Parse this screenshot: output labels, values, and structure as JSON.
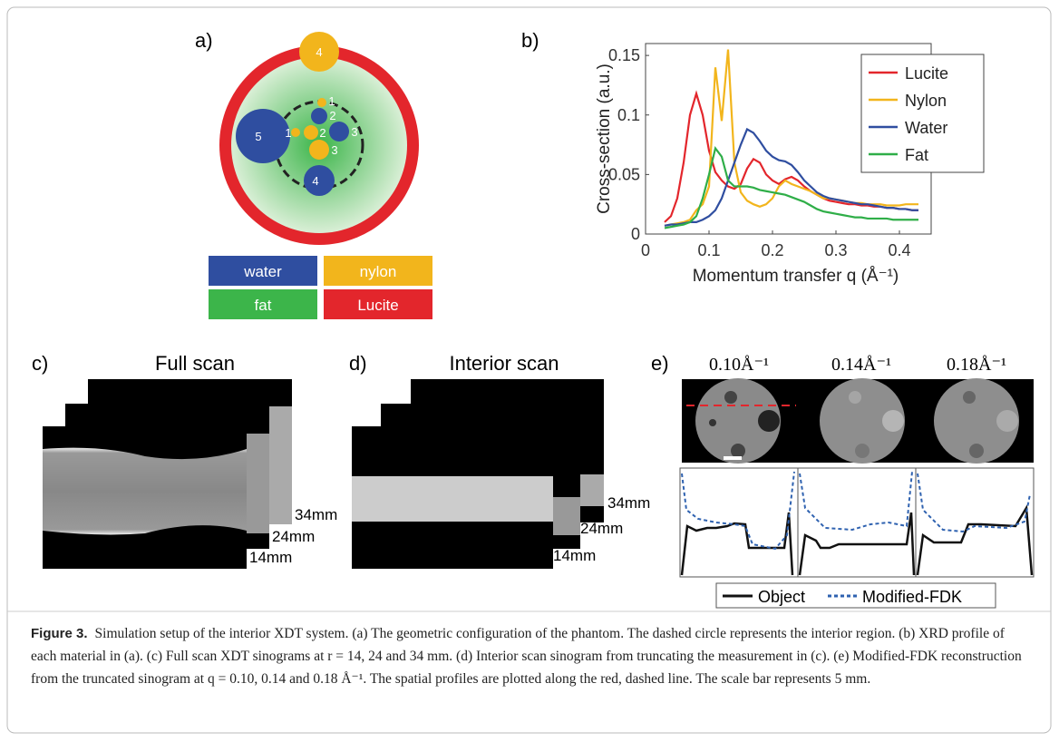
{
  "figure": {
    "panel_a": {
      "label": "a)",
      "markers": [
        "4",
        "1",
        "2",
        "5",
        "1",
        "2",
        "3",
        "3",
        "4"
      ],
      "legend": [
        "water",
        "nylon",
        "fat",
        "Lucite"
      ]
    },
    "panel_c": {
      "label": "c)",
      "title": "Full scan",
      "depths": [
        "14mm",
        "24mm",
        "34mm"
      ]
    },
    "panel_d": {
      "label": "d)",
      "title": "Interior scan",
      "depths": [
        "14mm",
        "24mm",
        "34mm"
      ]
    },
    "panel_e": {
      "label": "e)",
      "q_labels": [
        "0.10Å⁻¹",
        "0.14Å⁻¹",
        "0.18Å⁻¹"
      ],
      "legend": [
        "Object",
        "Modified-FDK"
      ]
    },
    "caption": {
      "label": "Figure 3.",
      "text": "Simulation setup of the interior XDT system. (a) The geometric configuration of the phantom. The dashed circle represents the interior region. (b) XRD profile of each material in (a). (c) Full scan XDT sinograms at r = 14, 24 and 34 mm. (d) Interior scan sinogram from truncating the measurement in (c). (e) Modified-FDK reconstruction from the truncated sinogram at q = 0.10, 0.14 and 0.18 Å⁻¹. The spatial profiles are plotted along the red, dashed line. The scale bar represents 5 mm."
    }
  },
  "chart_data": {
    "type": "line",
    "panel_label": "b)",
    "xlabel": "Momentum transfer q (Å⁻¹)",
    "ylabel": "Cross-section (a.u.)",
    "x": [
      0.03,
      0.04,
      0.05,
      0.06,
      0.07,
      0.08,
      0.09,
      0.1,
      0.11,
      0.12,
      0.13,
      0.14,
      0.15,
      0.16,
      0.17,
      0.18,
      0.19,
      0.2,
      0.21,
      0.22,
      0.23,
      0.24,
      0.25,
      0.26,
      0.27,
      0.28,
      0.29,
      0.3,
      0.31,
      0.32,
      0.33,
      0.34,
      0.35,
      0.36,
      0.37,
      0.38,
      0.39,
      0.4,
      0.41,
      0.42,
      0.43
    ],
    "series": [
      {
        "name": "Lucite",
        "color": "#e3262c",
        "values": [
          0.01,
          0.015,
          0.03,
          0.06,
          0.1,
          0.118,
          0.1,
          0.07,
          0.052,
          0.045,
          0.04,
          0.038,
          0.042,
          0.055,
          0.063,
          0.06,
          0.05,
          0.045,
          0.042,
          0.046,
          0.048,
          0.045,
          0.04,
          0.036,
          0.033,
          0.03,
          0.028,
          0.027,
          0.026,
          0.025,
          0.025,
          0.024,
          0.024,
          0.023,
          0.023,
          0.022,
          0.022,
          0.021,
          0.021,
          0.02,
          0.02
        ]
      },
      {
        "name": "Nylon",
        "color": "#f2b51c",
        "values": [
          0.007,
          0.008,
          0.009,
          0.01,
          0.012,
          0.02,
          0.025,
          0.04,
          0.14,
          0.095,
          0.155,
          0.06,
          0.035,
          0.028,
          0.025,
          0.023,
          0.025,
          0.03,
          0.04,
          0.045,
          0.042,
          0.04,
          0.038,
          0.036,
          0.033,
          0.03,
          0.03,
          0.029,
          0.028,
          0.027,
          0.026,
          0.026,
          0.025,
          0.025,
          0.025,
          0.024,
          0.024,
          0.024,
          0.025,
          0.025,
          0.025
        ]
      },
      {
        "name": "Water",
        "color": "#2f4ea0",
        "values": [
          0.007,
          0.008,
          0.008,
          0.009,
          0.01,
          0.01,
          0.012,
          0.015,
          0.02,
          0.03,
          0.045,
          0.06,
          0.075,
          0.088,
          0.085,
          0.078,
          0.07,
          0.065,
          0.062,
          0.061,
          0.058,
          0.052,
          0.045,
          0.04,
          0.035,
          0.032,
          0.03,
          0.029,
          0.028,
          0.027,
          0.026,
          0.025,
          0.025,
          0.024,
          0.023,
          0.022,
          0.022,
          0.021,
          0.021,
          0.02,
          0.02
        ]
      },
      {
        "name": "Fat",
        "color": "#2fae48",
        "values": [
          0.005,
          0.006,
          0.007,
          0.008,
          0.01,
          0.015,
          0.03,
          0.05,
          0.072,
          0.065,
          0.045,
          0.04,
          0.04,
          0.04,
          0.039,
          0.037,
          0.036,
          0.035,
          0.034,
          0.033,
          0.031,
          0.029,
          0.027,
          0.024,
          0.021,
          0.019,
          0.018,
          0.017,
          0.016,
          0.015,
          0.014,
          0.014,
          0.013,
          0.013,
          0.013,
          0.013,
          0.012,
          0.012,
          0.012,
          0.012,
          0.012
        ]
      }
    ],
    "xlim": [
      0,
      0.45
    ],
    "ylim": [
      0,
      0.16
    ],
    "xticks": [
      0,
      0.1,
      0.2,
      0.3,
      0.4
    ],
    "yticks": [
      0,
      0.05,
      0.1,
      0.15
    ],
    "legend": "upper right",
    "grid": false
  }
}
